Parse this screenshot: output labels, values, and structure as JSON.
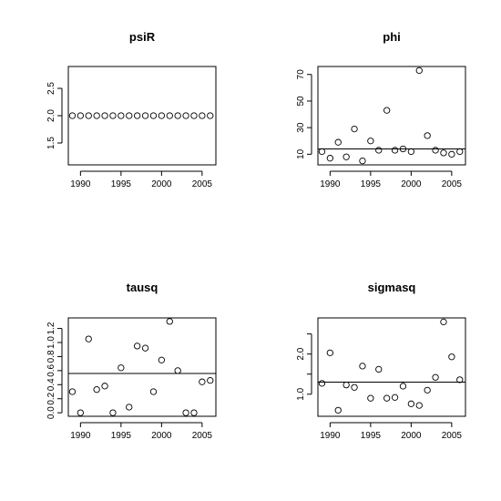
{
  "chart_data": [
    {
      "type": "scatter",
      "title": "psiR",
      "xlabel": "",
      "ylabel": "",
      "xlim": [
        1988.5,
        2006.7
      ],
      "ylim": [
        1.1,
        2.9
      ],
      "xticks": [
        1990,
        1995,
        2000,
        2005
      ],
      "yticks": [
        1.5,
        2.0,
        2.5
      ],
      "ytick_labels": [
        "1.5",
        "2.0",
        "2.5"
      ],
      "x": [
        1989,
        1990,
        1991,
        1992,
        1993,
        1994,
        1995,
        1996,
        1997,
        1998,
        1999,
        2000,
        2001,
        2002,
        2003,
        2004,
        2005,
        2006
      ],
      "y": [
        2.0,
        2.0,
        2.0,
        2.0,
        2.0,
        2.0,
        2.0,
        2.0,
        2.0,
        2.0,
        2.0,
        2.0,
        2.0,
        2.0,
        2.0,
        2.0,
        2.0,
        2.0
      ],
      "hline": null,
      "grid": false
    },
    {
      "type": "scatter",
      "title": "phi",
      "xlabel": "",
      "ylabel": "",
      "xlim": [
        1988.5,
        2006.7
      ],
      "ylim": [
        2,
        76
      ],
      "xticks": [
        1990,
        1995,
        2000,
        2005
      ],
      "yticks": [
        10,
        30,
        50,
        70
      ],
      "ytick_labels": [
        "10",
        "30",
        "50",
        "70"
      ],
      "x": [
        1989,
        1990,
        1991,
        1992,
        1993,
        1994,
        1995,
        1996,
        1997,
        1998,
        1999,
        2000,
        2001,
        2002,
        2003,
        2004,
        2005,
        2006
      ],
      "y": [
        12,
        7,
        19,
        8,
        29,
        5,
        20,
        13,
        43,
        13,
        14,
        12,
        73,
        24,
        13,
        11,
        10,
        12
      ],
      "hline": 14,
      "grid": false
    },
    {
      "type": "scatter",
      "title": "tausq",
      "xlabel": "",
      "ylabel": "",
      "xlim": [
        1988.5,
        2006.7
      ],
      "ylim": [
        -0.05,
        1.35
      ],
      "xticks": [
        1990,
        1995,
        2000,
        2005
      ],
      "yticks": [
        0.0,
        0.2,
        0.4,
        0.6,
        0.8,
        1.0,
        1.2
      ],
      "ytick_labels": [
        "0.0",
        "0.2",
        "0.4",
        "0.6",
        "0.8",
        "1.0",
        "1.2"
      ],
      "x": [
        1989,
        1990,
        1991,
        1992,
        1993,
        1994,
        1995,
        1996,
        1997,
        1998,
        1999,
        2000,
        2001,
        2002,
        2003,
        2004,
        2005,
        2006
      ],
      "y": [
        0.3,
        0.0,
        1.05,
        0.33,
        0.38,
        0.0,
        0.64,
        0.08,
        0.95,
        0.92,
        0.3,
        0.75,
        1.3,
        0.6,
        0.0,
        0.0,
        0.44,
        0.46
      ],
      "hline": 0.56,
      "grid": false
    },
    {
      "type": "scatter",
      "title": "sigmasq",
      "xlabel": "",
      "ylabel": "",
      "xlim": [
        1988.5,
        2006.7
      ],
      "ylim": [
        0.45,
        2.9
      ],
      "xticks": [
        1990,
        1995,
        2000,
        2005
      ],
      "yticks": [
        1.0,
        1.5,
        2.0,
        2.5
      ],
      "ytick_labels": [
        "1.0",
        "",
        "2.0",
        ""
      ],
      "x": [
        1989,
        1990,
        1991,
        1992,
        1993,
        1994,
        1995,
        1996,
        1997,
        1998,
        1999,
        2000,
        2001,
        2002,
        2003,
        2004,
        2005,
        2006
      ],
      "y": [
        1.27,
        2.03,
        0.6,
        1.23,
        1.17,
        1.7,
        0.9,
        1.62,
        0.9,
        0.92,
        1.2,
        0.76,
        0.72,
        1.1,
        1.42,
        2.8,
        1.93,
        1.36
      ],
      "hline": 1.3,
      "grid": false
    }
  ]
}
